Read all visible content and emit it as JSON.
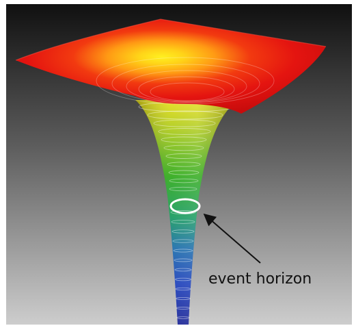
{
  "diagram": {
    "annotation": {
      "label": "event horizon"
    },
    "colors": {
      "background_top": "#101010",
      "background_bottom": "#c8c8c8",
      "surface_outer": "#e81410",
      "surface_core": "#ffe818",
      "funnel_yellow": "#e8dc10",
      "funnel_green": "#22aa14",
      "funnel_blue": "#1430b0",
      "horizon_ring": "#ffffff",
      "arrow": "#111111"
    }
  }
}
